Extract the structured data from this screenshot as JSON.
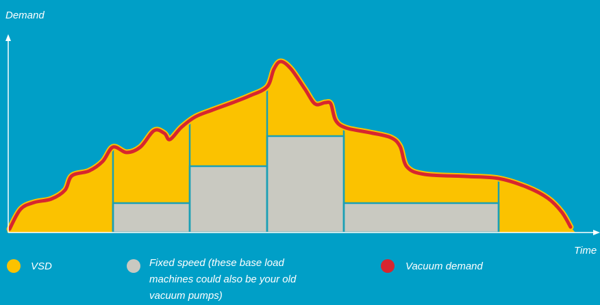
{
  "axes": {
    "y_label": "Demand",
    "x_label": "Time"
  },
  "legend": [
    {
      "label": [
        "VSD"
      ]
    },
    {
      "label": [
        "Fixed speed (these base load",
        "machines could also be your old",
        "vacuum pumps)"
      ]
    },
    {
      "label": [
        "Vacuum demand"
      ]
    }
  ]
}
